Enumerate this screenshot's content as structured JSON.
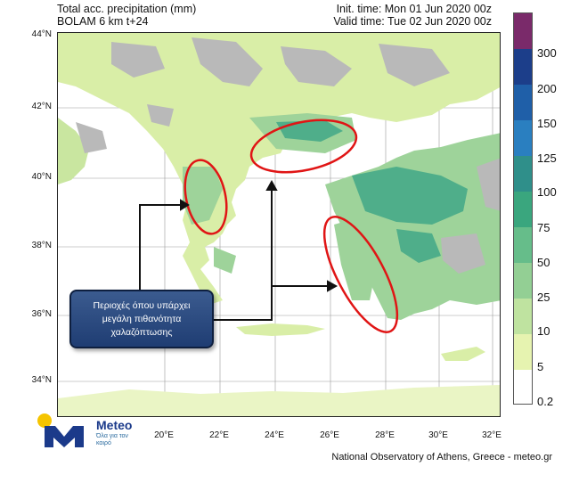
{
  "header": {
    "title": "Total acc. precipitation (mm)",
    "model": "BOLAM 6 km t+24",
    "init_time": "Init. time: Mon 01 Jun 2020 00z",
    "valid_time": "Valid time: Tue 02 Jun 2020 00z"
  },
  "axes": {
    "lat_labels": [
      "44°N",
      "42°N",
      "40°N",
      "38°N",
      "36°N",
      "34°N"
    ],
    "lon_labels": [
      "20°E",
      "22°E",
      "24°E",
      "26°E",
      "28°E",
      "30°E",
      "32°E"
    ]
  },
  "colorbar": {
    "labels": [
      "300",
      "200",
      "150",
      "125",
      "100",
      "75",
      "50",
      "25",
      "10",
      "5",
      "0.2"
    ],
    "colors": [
      "#7a2a6a",
      "#1c3e8a",
      "#1f5fa8",
      "#2a7fc0",
      "#2f8f8a",
      "#3aa67e",
      "#66bd8a",
      "#93cf94",
      "#bfe3a0",
      "#e6f3b0",
      "#ffffff"
    ]
  },
  "colors": {
    "sea": "#ffffff",
    "land_dry": "#b9b9b9",
    "precip_light": "#d9eea7",
    "precip_mid": "#9ed39a",
    "precip_heavy": "#4fae8a",
    "highlight_ellipse": "#e01515",
    "arrow": "#111111"
  },
  "callout": {
    "text": "Περιοχές όπου υπάρχει μεγάλη πιθανότητα χαλαζόπτωσης"
  },
  "logo": {
    "brand": "Meteo",
    "slogan": "Όλα για τον καιρό"
  },
  "footer": "National Observatory of Athens, Greece - meteo.gr"
}
